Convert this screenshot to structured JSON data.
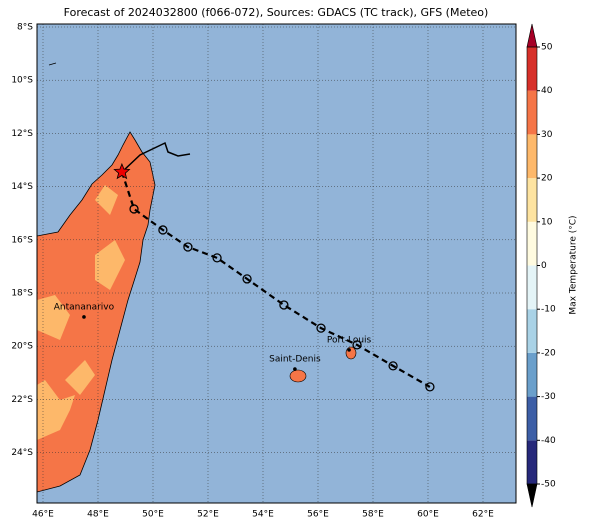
{
  "map": {
    "title": "Forecast of 2024032800 (f066-072), Sources: GDACS (TC track), GFS (Meteo)",
    "ocean_color": "#92b4d8",
    "land_color": "#f57547",
    "warm_land_color": "#fdb86a",
    "lat_labels": [
      {
        "value": -8,
        "label": "8°S"
      },
      {
        "value": -10,
        "label": "10°S"
      },
      {
        "value": -12,
        "label": "12°S"
      },
      {
        "value": -14,
        "label": "14°S"
      },
      {
        "value": -16,
        "label": "16°S"
      },
      {
        "value": -18,
        "label": "18°S"
      },
      {
        "value": -20,
        "label": "20°S"
      },
      {
        "value": -22,
        "label": "22°S"
      },
      {
        "value": -24,
        "label": "24°S"
      }
    ],
    "lon_labels": [
      {
        "value": 46,
        "label": "46°E"
      },
      {
        "value": 48,
        "label": "48°E"
      },
      {
        "value": 50,
        "label": "50°E"
      },
      {
        "value": 52,
        "label": "52°E"
      },
      {
        "value": 54,
        "label": "54°E"
      },
      {
        "value": 56,
        "label": "56°E"
      },
      {
        "value": 58,
        "label": "58°E"
      },
      {
        "value": 60,
        "label": "60°E"
      },
      {
        "value": 62,
        "label": "62°E"
      }
    ],
    "cities": [
      {
        "name": "Antananarivo",
        "lon": 47.49,
        "lat": -18.9
      },
      {
        "name": "Saint-Denis",
        "lon": 55.16,
        "lat": -20.86
      },
      {
        "name": "Port-Louis",
        "lon": 57.13,
        "lat": -20.14
      }
    ],
    "storm_position": {
      "lon": 48.87,
      "lat": -13.45
    },
    "track": [
      {
        "lon": 49.31,
        "lat": -14.84
      },
      {
        "lon": 50.36,
        "lat": -15.63
      },
      {
        "lon": 51.27,
        "lat": -16.27
      },
      {
        "lon": 52.33,
        "lat": -16.68
      },
      {
        "lon": 53.42,
        "lat": -17.47
      },
      {
        "lon": 54.76,
        "lat": -18.45
      },
      {
        "lon": 56.11,
        "lat": -19.32
      },
      {
        "lon": 57.42,
        "lat": -19.95
      },
      {
        "lon": 58.73,
        "lat": -20.74
      },
      {
        "lon": 60.07,
        "lat": -21.53
      }
    ],
    "colorbar": {
      "label": "Max Temperature (°C)",
      "ticks": [
        -50,
        -40,
        -30,
        -20,
        -10,
        0,
        10,
        20,
        30,
        40,
        50
      ],
      "colors": [
        "#26287a",
        "#3c5ea6",
        "#6a9fcb",
        "#a9d2e6",
        "#e4f4f7",
        "#fffbe0",
        "#fde3a0",
        "#fdb86a",
        "#f57547",
        "#d7302a",
        "#a50026"
      ]
    }
  }
}
